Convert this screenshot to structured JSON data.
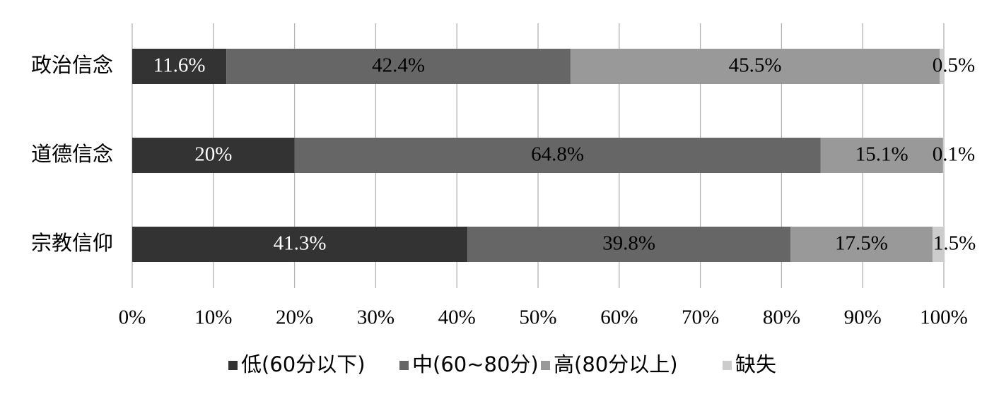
{
  "chart_data": {
    "type": "stacked-bar-horizontal",
    "categories": [
      "政治信念",
      "道德信念",
      "宗教信仰"
    ],
    "series": [
      {
        "name": "低(60分以下)",
        "color": "#333333",
        "values": [
          11.6,
          20,
          41.3
        ],
        "value_labels": [
          "11.6%",
          "20%",
          "41.3%"
        ],
        "label_color": "#ffffff"
      },
      {
        "name": "中(60~80分)",
        "color": "#666666",
        "values": [
          42.4,
          64.8,
          39.8
        ],
        "value_labels": [
          "42.4%",
          "64.8%",
          "39.8%"
        ],
        "label_color": "#000000"
      },
      {
        "name": "高(80分以上)",
        "color": "#999999",
        "values": [
          45.5,
          15.1,
          17.5
        ],
        "value_labels": [
          "45.5%",
          "15.1%",
          "17.5%"
        ],
        "label_color": "#000000"
      },
      {
        "name": "缺失",
        "color": "#cccccc",
        "values": [
          0.5,
          0.1,
          1.5
        ],
        "value_labels": [
          "0.5%",
          "0.1%",
          "1.5%"
        ],
        "label_color": "#000000"
      }
    ],
    "xlim": [
      0,
      100
    ],
    "xticks": [
      {
        "value": 0,
        "label": "0%"
      },
      {
        "value": 10,
        "label": "10%"
      },
      {
        "value": 20,
        "label": "20%"
      },
      {
        "value": 30,
        "label": "30%"
      },
      {
        "value": 40,
        "label": "40%"
      },
      {
        "value": 50,
        "label": "50%"
      },
      {
        "value": 60,
        "label": "60%"
      },
      {
        "value": 70,
        "label": "70%"
      },
      {
        "value": 80,
        "label": "80%"
      },
      {
        "value": 90,
        "label": "90%"
      },
      {
        "value": 100,
        "label": "100%"
      }
    ],
    "grid": true,
    "legend": "bottom"
  }
}
